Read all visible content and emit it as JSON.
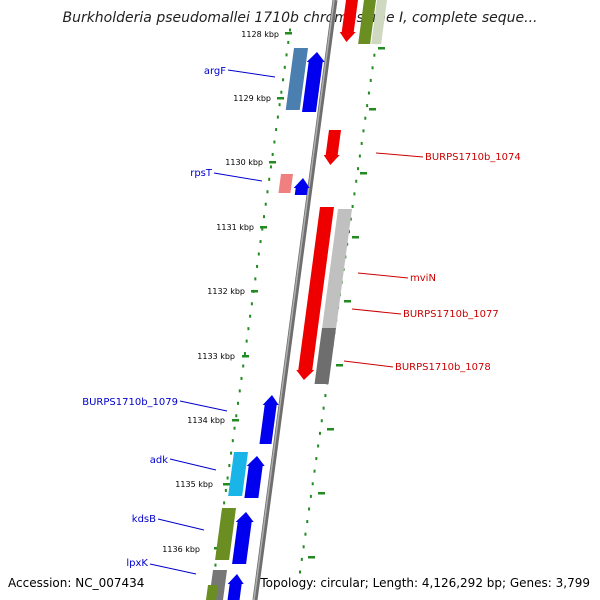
{
  "title": "Burkholderia pseudomallei 1710b chromosome I, complete seque...",
  "accession": "Accession: NC_007434",
  "summary": "Topology: circular; Length: 4,126,292 bp; Genes: 3,799",
  "kbp_labels": [
    "1128 kbp",
    "1129 kbp",
    "1130 kbp",
    "1131 kbp",
    "1132 kbp",
    "1133 kbp",
    "1134 kbp",
    "1135 kbp",
    "1136 kbp"
  ],
  "left_labels": [
    "argF",
    "rpsT",
    "BURPS1710b_1079",
    "adk",
    "kdsB",
    "lpxK"
  ],
  "right_labels": [
    "BURPS1710b_1074",
    "mviN",
    "BURPS1710b_1077",
    "BURPS1710b_1078"
  ],
  "colors": {
    "forward_label": "#0000cc",
    "reverse_label": "#cc0000",
    "backbone": "#888888",
    "scale_dash": "#228b22"
  }
}
